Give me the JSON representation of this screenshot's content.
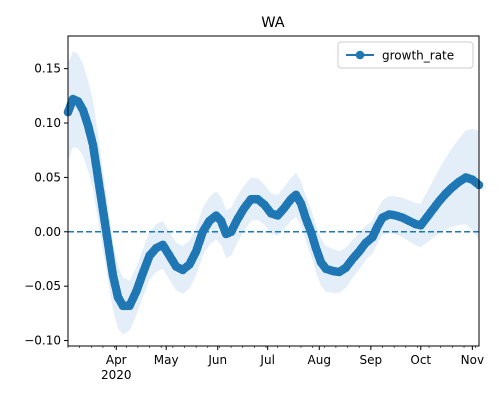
{
  "chart_data": {
    "type": "line",
    "title": "WA",
    "xlabel": "",
    "ylabel": "",
    "x_range": [
      "2020-03-03",
      "2020-11-05"
    ],
    "ylim": [
      -0.105,
      0.18
    ],
    "x_ticks": [
      {
        "date": "2020-04-01",
        "label": "Apr",
        "sublabel": "2020"
      },
      {
        "date": "2020-05-01",
        "label": "May",
        "sublabel": ""
      },
      {
        "date": "2020-06-01",
        "label": "Jun",
        "sublabel": ""
      },
      {
        "date": "2020-07-01",
        "label": "Jul",
        "sublabel": ""
      },
      {
        "date": "2020-08-01",
        "label": "Aug",
        "sublabel": ""
      },
      {
        "date": "2020-09-01",
        "label": "Sep",
        "sublabel": ""
      },
      {
        "date": "2020-10-01",
        "label": "Oct",
        "sublabel": ""
      },
      {
        "date": "2020-11-01",
        "label": "Nov",
        "sublabel": ""
      }
    ],
    "y_ticks": [
      {
        "value": 0.15,
        "label": "0.15"
      },
      {
        "value": 0.1,
        "label": "0.10"
      },
      {
        "value": 0.05,
        "label": "0.05"
      },
      {
        "value": 0.0,
        "label": "0.00"
      },
      {
        "value": -0.05,
        "label": "−0.05"
      },
      {
        "value": -0.1,
        "label": "−0.10"
      }
    ],
    "reference_line": {
      "y": 0.0,
      "style": "dashed",
      "color": "#1f77b4"
    },
    "legend": {
      "position": "top-right",
      "entries": [
        "growth_rate"
      ]
    },
    "series": [
      {
        "name": "growth_rate",
        "color": "#1f77b4",
        "band_color": "#dbe8f5",
        "marker": "circle",
        "band_halfwidth": [
          [
            "2020-03-03",
            0.045
          ],
          [
            "2020-03-20",
            0.04
          ],
          [
            "2020-04-10",
            0.022
          ],
          [
            "2020-05-15",
            0.022
          ],
          [
            "2020-06-10",
            0.022
          ],
          [
            "2020-07-01",
            0.018
          ],
          [
            "2020-08-01",
            0.022
          ],
          [
            "2020-09-01",
            0.015
          ],
          [
            "2020-10-01",
            0.02
          ],
          [
            "2020-11-05",
            0.05
          ]
        ],
        "points": [
          [
            "2020-03-03",
            0.11
          ],
          [
            "2020-03-06",
            0.122
          ],
          [
            "2020-03-09",
            0.12
          ],
          [
            "2020-03-12",
            0.112
          ],
          [
            "2020-03-15",
            0.098
          ],
          [
            "2020-03-18",
            0.08
          ],
          [
            "2020-03-20",
            0.06
          ],
          [
            "2020-03-22",
            0.04
          ],
          [
            "2020-03-24",
            0.02
          ],
          [
            "2020-03-26",
            0.0
          ],
          [
            "2020-03-28",
            -0.02
          ],
          [
            "2020-03-30",
            -0.04
          ],
          [
            "2020-04-02",
            -0.06
          ],
          [
            "2020-04-05",
            -0.068
          ],
          [
            "2020-04-09",
            -0.068
          ],
          [
            "2020-04-13",
            -0.055
          ],
          [
            "2020-04-17",
            -0.038
          ],
          [
            "2020-04-21",
            -0.022
          ],
          [
            "2020-04-25",
            -0.015
          ],
          [
            "2020-04-29",
            -0.012
          ],
          [
            "2020-05-03",
            -0.022
          ],
          [
            "2020-05-07",
            -0.032
          ],
          [
            "2020-05-11",
            -0.035
          ],
          [
            "2020-05-15",
            -0.03
          ],
          [
            "2020-05-19",
            -0.018
          ],
          [
            "2020-05-23",
            0.0
          ],
          [
            "2020-05-27",
            0.01
          ],
          [
            "2020-05-31",
            0.015
          ],
          [
            "2020-06-03",
            0.01
          ],
          [
            "2020-06-06",
            -0.002
          ],
          [
            "2020-06-09",
            0.0
          ],
          [
            "2020-06-13",
            0.012
          ],
          [
            "2020-06-17",
            0.022
          ],
          [
            "2020-06-21",
            0.03
          ],
          [
            "2020-06-25",
            0.03
          ],
          [
            "2020-06-29",
            0.025
          ],
          [
            "2020-07-03",
            0.017
          ],
          [
            "2020-07-07",
            0.015
          ],
          [
            "2020-07-11",
            0.022
          ],
          [
            "2020-07-15",
            0.03
          ],
          [
            "2020-07-18",
            0.034
          ],
          [
            "2020-07-21",
            0.026
          ],
          [
            "2020-07-24",
            0.012
          ],
          [
            "2020-07-27",
            0.0
          ],
          [
            "2020-07-30",
            -0.015
          ],
          [
            "2020-08-02",
            -0.028
          ],
          [
            "2020-08-05",
            -0.034
          ],
          [
            "2020-08-09",
            -0.036
          ],
          [
            "2020-08-13",
            -0.037
          ],
          [
            "2020-08-17",
            -0.033
          ],
          [
            "2020-08-21",
            -0.025
          ],
          [
            "2020-08-25",
            -0.018
          ],
          [
            "2020-08-29",
            -0.01
          ],
          [
            "2020-09-02",
            -0.005
          ],
          [
            "2020-09-05",
            0.005
          ],
          [
            "2020-09-08",
            0.013
          ],
          [
            "2020-09-12",
            0.016
          ],
          [
            "2020-09-16",
            0.015
          ],
          [
            "2020-09-20",
            0.013
          ],
          [
            "2020-09-24",
            0.01
          ],
          [
            "2020-09-28",
            0.007
          ],
          [
            "2020-10-01",
            0.006
          ],
          [
            "2020-10-04",
            0.012
          ],
          [
            "2020-10-08",
            0.02
          ],
          [
            "2020-10-12",
            0.028
          ],
          [
            "2020-10-16",
            0.035
          ],
          [
            "2020-10-20",
            0.041
          ],
          [
            "2020-10-24",
            0.046
          ],
          [
            "2020-10-28",
            0.05
          ],
          [
            "2020-11-01",
            0.048
          ],
          [
            "2020-11-05",
            0.043
          ]
        ]
      }
    ]
  }
}
